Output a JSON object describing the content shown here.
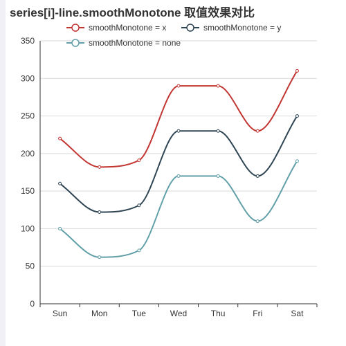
{
  "page": {
    "title": "series[i]-line.smoothMonotone 取值效果对比"
  },
  "chart_data": {
    "type": "line",
    "title": "series[i]-line.smoothMonotone 取值效果对比",
    "categories": [
      "Sun",
      "Mon",
      "Tue",
      "Wed",
      "Thu",
      "Fri",
      "Sat"
    ],
    "ylim": [
      0,
      350
    ],
    "y_ticks": [
      0,
      50,
      100,
      150,
      200,
      250,
      300,
      350
    ],
    "grid": true,
    "legend_position": "top",
    "series": [
      {
        "name": "smoothMonotone = x",
        "color": "#c23531",
        "values": [
          220,
          182,
          191,
          290,
          290,
          230,
          310
        ]
      },
      {
        "name": "smoothMonotone = y",
        "color": "#2f4554",
        "values": [
          160,
          122,
          131,
          230,
          230,
          170,
          250
        ]
      },
      {
        "name": "smoothMonotone = none",
        "color": "#61a0a8",
        "values": [
          100,
          62,
          71,
          170,
          170,
          110,
          190
        ]
      }
    ]
  }
}
